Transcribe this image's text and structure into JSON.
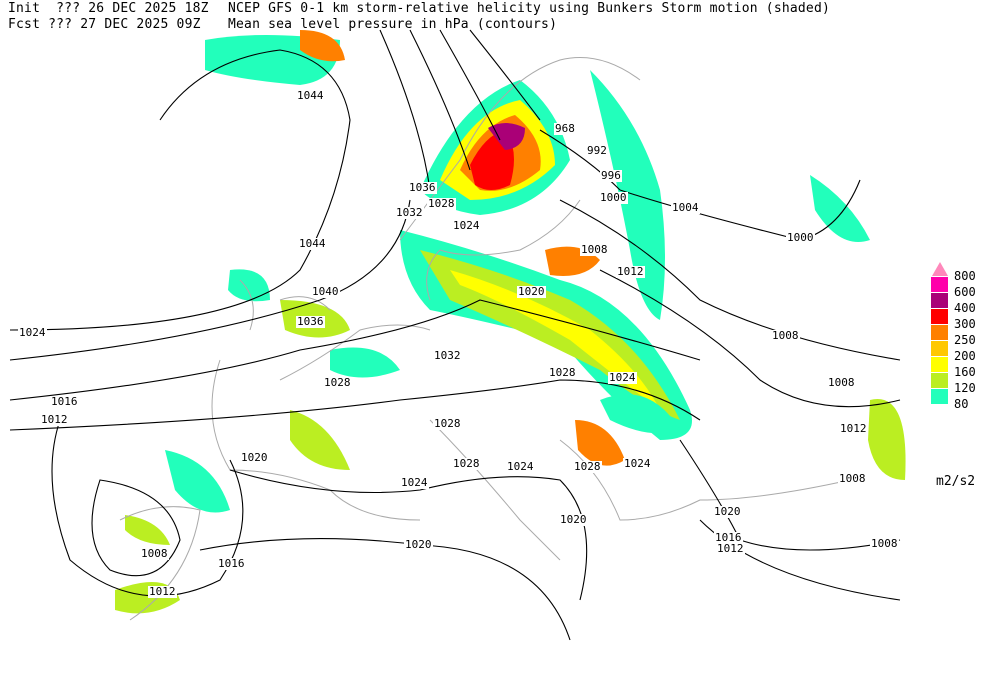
{
  "header": {
    "init_line": "Init  ??? 26 DEC 2025 18Z",
    "fcst_line": "Fcst ??? 27 DEC 2025 09Z",
    "title_shaded": "NCEP GFS 0-1 km storm-relative helicity using Bunkers Storm motion (shaded)",
    "title_contours": "Mean sea level pressure in hPa (contours)"
  },
  "legend": {
    "units": "m2/s2",
    "levels": [
      {
        "label": "800",
        "color": "#ff88bb"
      },
      {
        "label": "600",
        "color": "#ff00aa"
      },
      {
        "label": "400",
        "color": "#aa0077"
      },
      {
        "label": "300",
        "color": "#ff0000"
      },
      {
        "label": "250",
        "color": "#ff8000"
      },
      {
        "label": "200",
        "color": "#ffc800"
      },
      {
        "label": "160",
        "color": "#ffff00"
      },
      {
        "label": "120",
        "color": "#bbee22"
      },
      {
        "label": "80",
        "color": "#22ffbb"
      }
    ]
  },
  "contour_labels": [
    "1044",
    "1044",
    "1040",
    "1036",
    "1032",
    "1028",
    "1024",
    "1016",
    "1012",
    "1020",
    "1024",
    "1020",
    "1016",
    "1012",
    "1008",
    "1028",
    "1028",
    "1024",
    "1028",
    "1024",
    "1028",
    "1024",
    "1020",
    "1020",
    "1016",
    "1012",
    "1008",
    "1008",
    "1012",
    "1008",
    "1008",
    "1012",
    "1008",
    "1004",
    "1000",
    "1000",
    "996",
    "992",
    "968",
    "1036",
    "1028",
    "1032",
    "1024",
    "1020"
  ]
}
